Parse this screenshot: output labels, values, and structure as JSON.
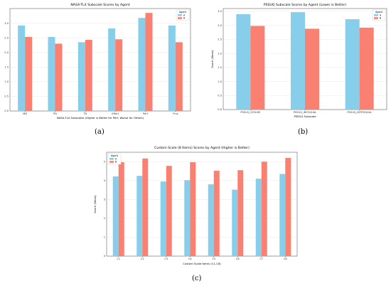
{
  "colors": {
    "agentA": "#87ceeb",
    "agentB": "#fa8072",
    "axis": "#000000",
    "grid": "#e8e8e8"
  },
  "captions": {
    "a": "(a)",
    "b": "(b)",
    "c": "(c)"
  },
  "chart_data": [
    {
      "id": "a",
      "type": "bar",
      "title": "NASA-TLX Subscale Scores by Agent",
      "xlabel": "NASA-TLX Subscales (Higher is Better for Perf, Worse for Others)",
      "ylabel": "",
      "categories": [
        "MD",
        "PD",
        "TD",
        "Effort",
        "Perf",
        "Frus"
      ],
      "series": [
        {
          "name": "A",
          "values": [
            2.92,
            2.53,
            2.35,
            2.82,
            3.18,
            2.92
          ]
        },
        {
          "name": "B",
          "values": [
            2.53,
            2.3,
            2.43,
            2.45,
            3.35,
            2.35
          ]
        }
      ],
      "ylim": [
        0,
        3.5
      ],
      "yticks": [
        "0.0",
        "0.5",
        "1.0",
        "1.5",
        "2.0",
        "2.5",
        "3.0"
      ],
      "legend": {
        "title": "Agent",
        "position": "top-right"
      },
      "grid": true
    },
    {
      "id": "b",
      "type": "bar",
      "title": "PSSUQ Subscale Scores by Agent (Lower is Better)",
      "xlabel": "PSSUQ Subscale",
      "ylabel": "Score (Mean)",
      "categories": [
        "PSSUQ_SYSUSE",
        "PSSUQ_INFOQUAL",
        "PSSUQ_INTERQUAL"
      ],
      "series": [
        {
          "name": "A",
          "values": [
            3.4,
            3.47,
            3.22
          ]
        },
        {
          "name": "B",
          "values": [
            2.98,
            2.88,
            2.92
          ]
        }
      ],
      "ylim": [
        0,
        3.6
      ],
      "yticks": [
        "0.0",
        "0.5",
        "1.0",
        "1.5",
        "2.0",
        "2.5",
        "3.0",
        "3.5"
      ],
      "legend": {
        "title": "Agent",
        "position": "top-right"
      },
      "grid": true
    },
    {
      "id": "c",
      "type": "bar",
      "title": "Custom Scale (8 Items) Scores by Agent (Higher is Better)",
      "xlabel": "Custom Scale Items (C1-C8)",
      "ylabel": "Score (Mean)",
      "categories": [
        "C1",
        "C2",
        "C3",
        "C4",
        "C5",
        "C6",
        "C7",
        "C8"
      ],
      "series": [
        {
          "name": "A",
          "values": [
            4.22,
            4.25,
            3.95,
            4.02,
            3.8,
            3.52,
            4.1,
            4.35
          ]
        },
        {
          "name": "B",
          "values": [
            4.97,
            5.17,
            4.78,
            4.97,
            4.52,
            4.55,
            5.0,
            5.2
          ]
        }
      ],
      "ylim": [
        0,
        5.5
      ],
      "yticks": [
        "0",
        "1",
        "2",
        "3",
        "4",
        "5"
      ],
      "legend": {
        "title": "Agent",
        "position": "top-left"
      },
      "grid": true
    }
  ]
}
